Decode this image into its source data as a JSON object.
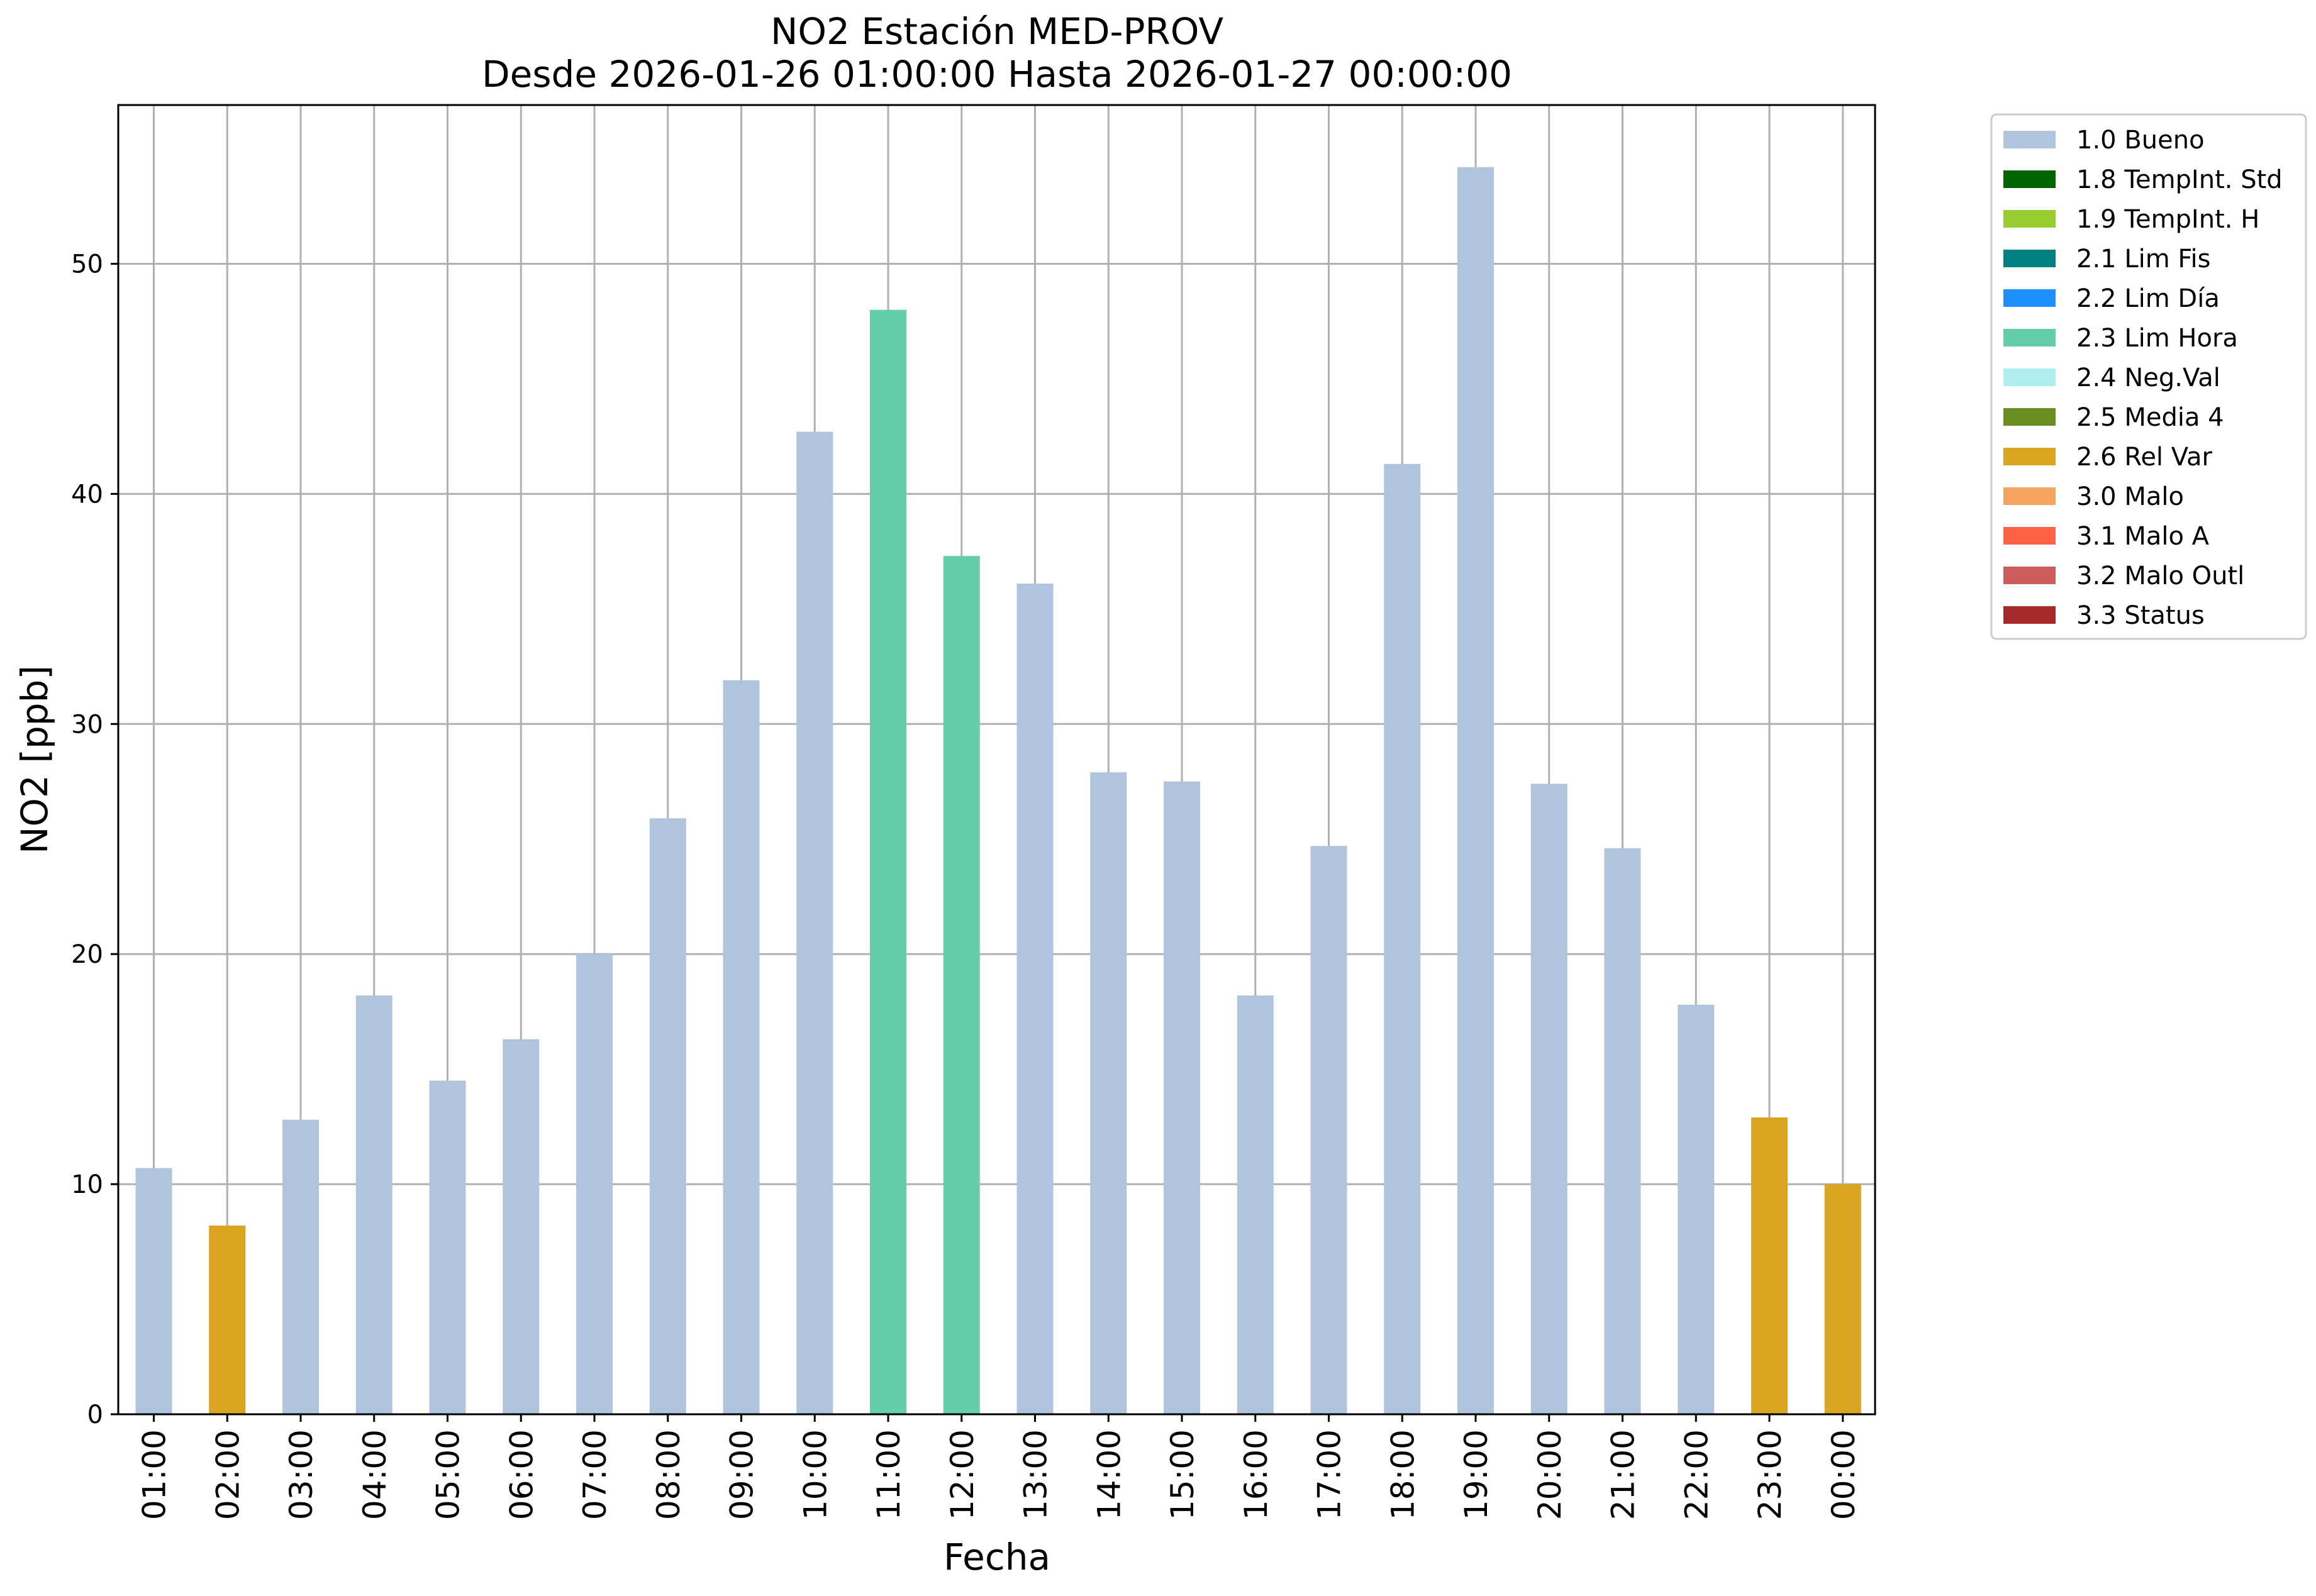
{
  "chart_data": {
    "type": "bar",
    "title": "NO2 Estación MED-PROV",
    "subtitle": "Desde 2026-01-26 01:00:00 Hasta 2026-01-27 00:00:00",
    "xlabel": "Fecha",
    "ylabel": "NO2 [ppb]",
    "ylim": [
      0,
      56.9
    ],
    "yticks": [
      0,
      10,
      20,
      30,
      40,
      50
    ],
    "grid": true,
    "legend_placement": "outside-right-top",
    "categories": [
      "01:00",
      "02:00",
      "03:00",
      "04:00",
      "05:00",
      "06:00",
      "07:00",
      "08:00",
      "09:00",
      "10:00",
      "11:00",
      "12:00",
      "13:00",
      "14:00",
      "15:00",
      "16:00",
      "17:00",
      "18:00",
      "19:00",
      "20:00",
      "21:00",
      "22:00",
      "23:00",
      "00:00"
    ],
    "values": [
      10.7,
      8.2,
      12.8,
      18.2,
      14.5,
      16.3,
      20.0,
      25.9,
      31.9,
      42.7,
      48.0,
      37.3,
      36.1,
      27.9,
      27.5,
      18.2,
      24.7,
      41.3,
      54.2,
      27.4,
      24.6,
      17.8,
      12.9,
      10.0
    ],
    "flags": [
      "1.0",
      "2.6",
      "1.0",
      "1.0",
      "1.0",
      "1.0",
      "1.0",
      "1.0",
      "1.0",
      "1.0",
      "2.3",
      "2.3",
      "1.0",
      "1.0",
      "1.0",
      "1.0",
      "1.0",
      "1.0",
      "1.0",
      "1.0",
      "1.0",
      "1.0",
      "2.6",
      "2.6"
    ],
    "legend": [
      {
        "code": "1.0",
        "label": "1.0 Bueno",
        "color": "#b0c4de"
      },
      {
        "code": "1.8",
        "label": "1.8 TempInt. Std",
        "color": "#006400"
      },
      {
        "code": "1.9",
        "label": "1.9 TempInt. H",
        "color": "#9acd32"
      },
      {
        "code": "2.1",
        "label": "2.1 Lim Fis",
        "color": "#008080"
      },
      {
        "code": "2.2",
        "label": "2.2 Lim Día",
        "color": "#1e90ff"
      },
      {
        "code": "2.3",
        "label": "2.3 Lim Hora",
        "color": "#66cdaa"
      },
      {
        "code": "2.4",
        "label": "2.4 Neg.Val",
        "color": "#afeeee"
      },
      {
        "code": "2.5",
        "label": "2.5 Media 4",
        "color": "#6b8e23"
      },
      {
        "code": "2.6",
        "label": "2.6 Rel Var",
        "color": "#daa520"
      },
      {
        "code": "3.0",
        "label": "3.0 Malo",
        "color": "#f4a460"
      },
      {
        "code": "3.1",
        "label": "3.1 Malo A",
        "color": "#ff6347"
      },
      {
        "code": "3.2",
        "label": "3.2 Malo Outl",
        "color": "#cd5c5c"
      },
      {
        "code": "3.3",
        "label": "3.3 Status",
        "color": "#a52a2a"
      }
    ]
  }
}
